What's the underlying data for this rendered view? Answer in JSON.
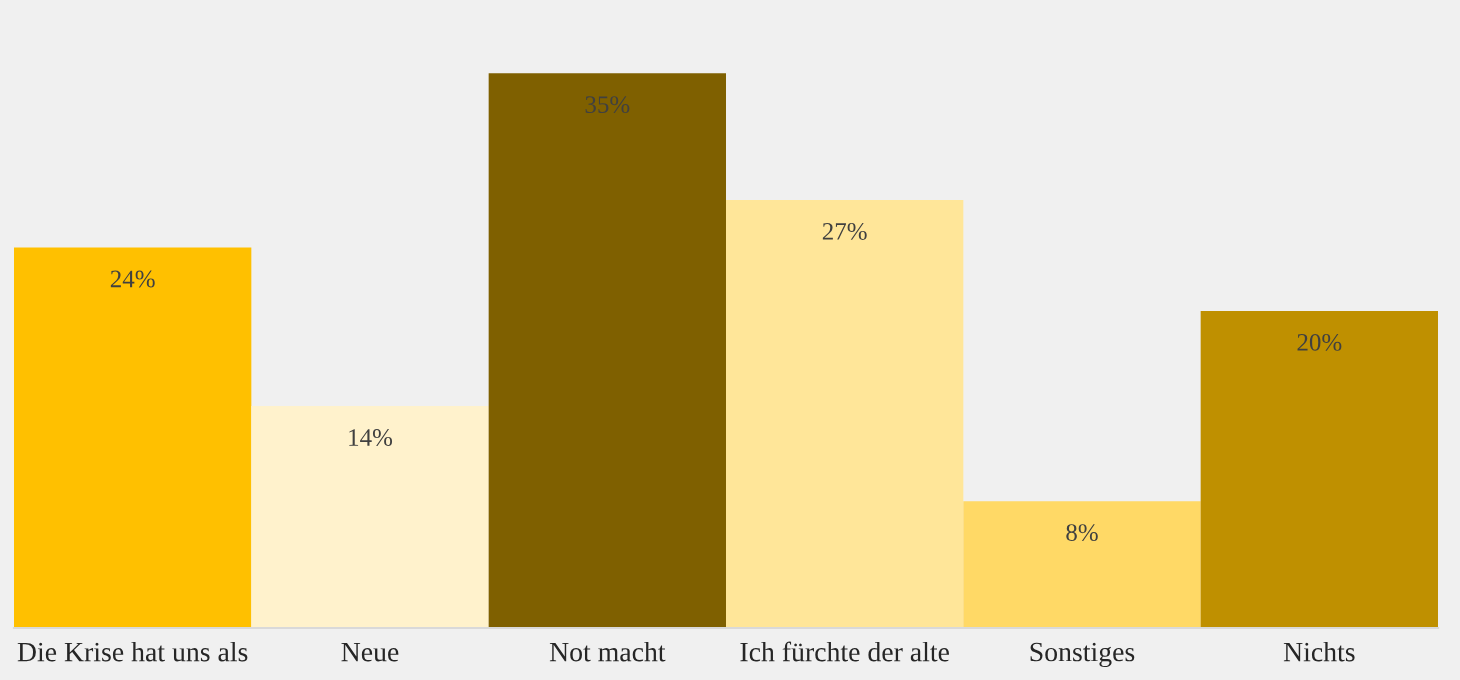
{
  "chart_data": {
    "type": "bar",
    "categories": [
      "Die Krise hat uns als",
      "Neue",
      "Not macht",
      "Ich fürchte der alte",
      "Sonstiges",
      "Nichts"
    ],
    "values": [
      24,
      14,
      35,
      27,
      8,
      20
    ],
    "value_labels": [
      "24%",
      "14%",
      "35%",
      "27%",
      "8%",
      "20%"
    ],
    "colors": [
      "#ffc000",
      "#fff2cc",
      "#7f6000",
      "#ffe699",
      "#ffd966",
      "#bf9000"
    ],
    "grid": false,
    "legend": false
  }
}
